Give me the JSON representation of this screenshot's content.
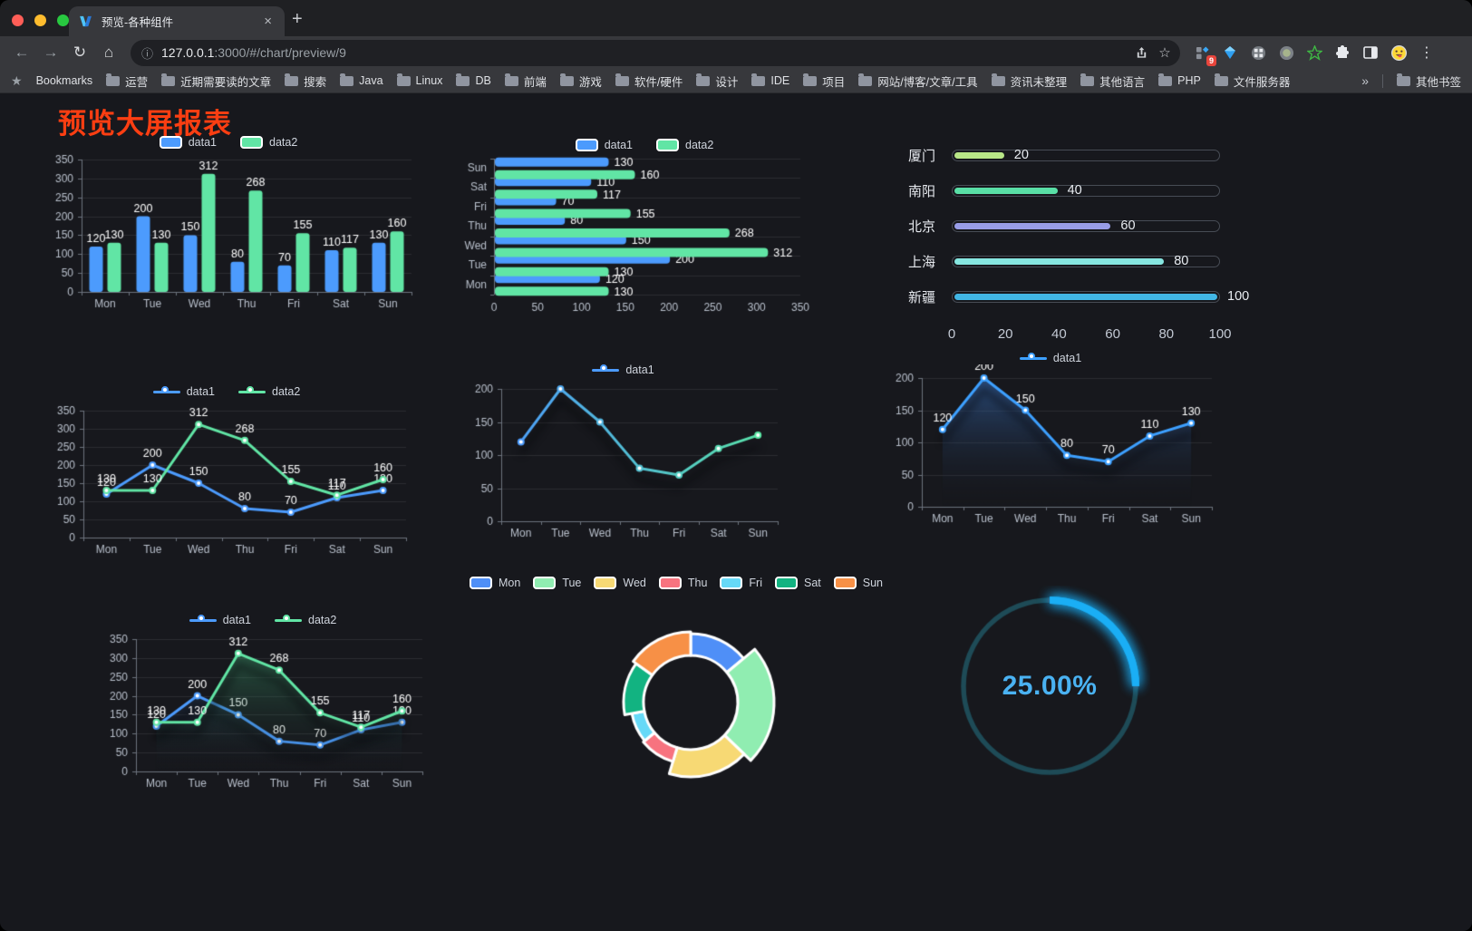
{
  "browser": {
    "tab_title": "预览-各种组件",
    "url_host": "127.0.0.1",
    "url_rest": ":3000/#/chart/preview/9",
    "bookmarks_label": "Bookmarks",
    "bookmarks": [
      "运营",
      "近期需要读的文章",
      "搜索",
      "Java",
      "Linux",
      "DB",
      "前端",
      "游戏",
      "软件/硬件",
      "设计",
      "IDE",
      "项目",
      "网站/博客/文章/工具",
      "资讯未整理",
      "其他语言",
      "PHP",
      "文件服务器"
    ],
    "bookmarks_overflow": "»",
    "other_bookmarks": "其他书签",
    "extension_badge": "9",
    "newtab_label": "+",
    "close_label": "×"
  },
  "page": {
    "title": "预览大屏报表",
    "title_color": "#fb3e12",
    "background": "#17181d"
  },
  "chart_data": [
    {
      "type": "bar",
      "id": "bar-vertical",
      "categories": [
        "Mon",
        "Tue",
        "Wed",
        "Thu",
        "Fri",
        "Sat",
        "Sun"
      ],
      "series": [
        {
          "name": "data1",
          "color": "#4c9bfd",
          "values": [
            120,
            200,
            150,
            80,
            70,
            110,
            130
          ]
        },
        {
          "name": "data2",
          "color": "#61e5a5",
          "values": [
            130,
            130,
            312,
            268,
            155,
            117,
            160
          ]
        }
      ],
      "ylim": [
        0,
        350
      ],
      "ytick": 50,
      "grid": true,
      "legend_position": "top"
    },
    {
      "type": "hbar",
      "id": "bar-horizontal",
      "categories_top_to_bottom": [
        "Sun",
        "Sat",
        "Fri",
        "Thu",
        "Wed",
        "Tue",
        "Mon"
      ],
      "series": [
        {
          "name": "data1",
          "color": "#4c9bfd",
          "values": [
            130,
            110,
            70,
            80,
            150,
            200,
            120
          ]
        },
        {
          "name": "data2",
          "color": "#61e5a5",
          "values": [
            160,
            117,
            155,
            268,
            312,
            130,
            130
          ]
        }
      ],
      "xlim": [
        0,
        350
      ],
      "xtick": 50,
      "grid": true,
      "legend_position": "top"
    },
    {
      "type": "progress",
      "id": "progress-bars",
      "xlim": [
        0,
        100
      ],
      "xticks": [
        0,
        20,
        40,
        60,
        80,
        100
      ],
      "rows": [
        {
          "label": "厦门",
          "value": 20,
          "color": "#b8e687"
        },
        {
          "label": "南阳",
          "value": 40,
          "color": "#59dfa6"
        },
        {
          "label": "北京",
          "value": 60,
          "color": "#989de8"
        },
        {
          "label": "上海",
          "value": 80,
          "color": "#86e6e0"
        },
        {
          "label": "新疆",
          "value": 100,
          "color": "#41b6e5"
        }
      ]
    },
    {
      "type": "line",
      "id": "line-two-series",
      "categories": [
        "Mon",
        "Tue",
        "Wed",
        "Thu",
        "Fri",
        "Sat",
        "Sun"
      ],
      "series": [
        {
          "name": "data1",
          "color": "#4c9bfd",
          "values": [
            120,
            200,
            150,
            80,
            70,
            110,
            130
          ]
        },
        {
          "name": "data2",
          "color": "#61e5a5",
          "values": [
            130,
            130,
            312,
            268,
            155,
            117,
            160
          ]
        }
      ],
      "ylim": [
        0,
        350
      ],
      "ytick": 50,
      "labels": true,
      "legend_position": "top"
    },
    {
      "type": "line",
      "id": "line-gradient",
      "categories": [
        "Mon",
        "Tue",
        "Wed",
        "Thu",
        "Fri",
        "Sat",
        "Sun"
      ],
      "series": [
        {
          "name": "data1",
          "color": "#4c9bfd",
          "gradient_to": "#5ae6a4",
          "values": [
            120,
            200,
            150,
            80,
            70,
            110,
            130
          ]
        }
      ],
      "ylim": [
        0,
        200
      ],
      "ytick": 50,
      "labels": false,
      "shadow": true,
      "legend_position": "top"
    },
    {
      "type": "line",
      "id": "area-single",
      "categories": [
        "Mon",
        "Tue",
        "Wed",
        "Thu",
        "Fri",
        "Sat",
        "Sun"
      ],
      "series": [
        {
          "name": "data1",
          "color": "#3da0ff",
          "area": "rgba(58,118,200,0.55)",
          "values": [
            120,
            200,
            150,
            80,
            70,
            110,
            130
          ]
        }
      ],
      "ylim": [
        0,
        200
      ],
      "ytick": 50,
      "labels": true,
      "shadow": true,
      "legend_position": "top"
    },
    {
      "type": "line",
      "id": "area-two-series",
      "categories": [
        "Mon",
        "Tue",
        "Wed",
        "Thu",
        "Fri",
        "Sat",
        "Sun"
      ],
      "series": [
        {
          "name": "data1",
          "color": "#4c9bfd",
          "area": "rgba(58,118,200,0.40)",
          "values": [
            120,
            200,
            150,
            80,
            70,
            110,
            130
          ]
        },
        {
          "name": "data2",
          "color": "#61e5a5",
          "area": "rgba(70,190,130,0.45)",
          "values": [
            130,
            130,
            312,
            268,
            155,
            117,
            160
          ]
        }
      ],
      "ylim": [
        0,
        350
      ],
      "ytick": 50,
      "labels": true,
      "shadow": true,
      "legend_position": "top"
    },
    {
      "type": "pie",
      "id": "donut-rose",
      "labels": [
        "Mon",
        "Tue",
        "Wed",
        "Thu",
        "Fri",
        "Sat",
        "Sun"
      ],
      "values": [
        120,
        200,
        150,
        80,
        70,
        110,
        130
      ],
      "colors": [
        "#4f8ff7",
        "#90edb1",
        "#f7d974",
        "#f7737f",
        "#66d9f7",
        "#12b381",
        "#f79046"
      ],
      "legend_position": "top"
    },
    {
      "type": "gauge",
      "id": "gauge-ring",
      "label": "25.00%",
      "value_percent": 25,
      "color": "#1aaef5",
      "track_color": "#1e4b57",
      "text_color": "#4ab2f2"
    }
  ]
}
